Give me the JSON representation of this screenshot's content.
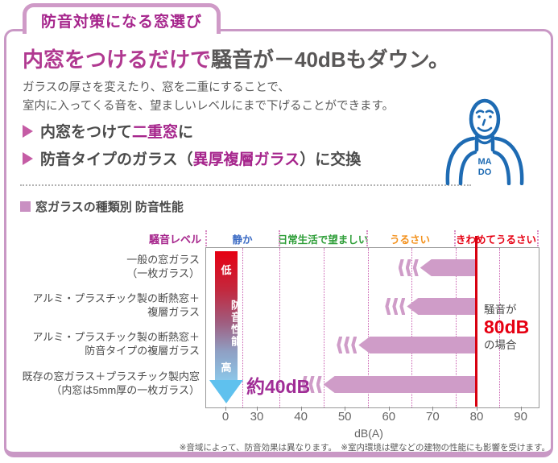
{
  "header": {
    "tab_title": "防音対策になる窓選び"
  },
  "hero": {
    "headline_highlight": "内窓をつけるだけで",
    "headline_rest": "騒音が－40dBもダウン。",
    "body_line1": "ガラスの厚さを変えたり、窓を二重にすることで、",
    "body_line2": "室内に入ってくる音を、望ましいレベルにまで下げることができます。",
    "bullets": [
      {
        "pre": "内窓をつけて",
        "em": "二重窓",
        "post": "に"
      },
      {
        "pre": "防音タイプのガラス（",
        "em": "異厚複層ガラス",
        "post": "）に交換"
      }
    ],
    "mascot": {
      "line1": "MA",
      "line2": "DO"
    }
  },
  "section_title": "窓ガラスの種類別 防音性能",
  "chart_data": {
    "type": "bar",
    "title": "窓ガラスの種類別 防音性能",
    "orientation": "horizontal arrows pointing left from 80dB noise source",
    "axis_title": {
      "label": "騒音レベル",
      "color": "#a6258c"
    },
    "zones": [
      {
        "label": "静か",
        "color": "#3b6bc4"
      },
      {
        "label": "日常生活で望ましい",
        "color": "#2e9e38"
      },
      {
        "label": "うるさい",
        "color": "#f3911c"
      },
      {
        "label": "きわめてうるさい",
        "color": "#e60012"
      }
    ],
    "perf_axis": {
      "low": "低",
      "title": "防音性能",
      "high": "高"
    },
    "categories": [
      [
        "一般の窓ガラス",
        "（一枚ガラス）"
      ],
      [
        "アルミ・プラスチック製の断熱窓＋",
        "複層ガラス"
      ],
      [
        "アルミ・プラスチック製の断熱窓＋",
        "防音タイプの複層ガラス"
      ],
      [
        "既存の窓ガラス＋プラスチック製内窓",
        "（内窓は5mm厚の一枚ガラス）"
      ]
    ],
    "bar_start_db": 80,
    "values_db": [
      62,
      59,
      48,
      40
    ],
    "x_ticks": [
      0,
      30,
      40,
      50,
      60,
      70,
      80,
      90
    ],
    "xlabel": "dB(A)",
    "annotations": {
      "result_label": "約40dB",
      "noise_note": [
        "騒音が",
        "80dB",
        "の場合"
      ]
    },
    "bar_color": "#cf9cc8",
    "noise_line_color": "#d7000f"
  },
  "footnote": "※音域によって、防音効果は異なります。　※室内環境は壁などの建物の性能にも影響を受けます。"
}
